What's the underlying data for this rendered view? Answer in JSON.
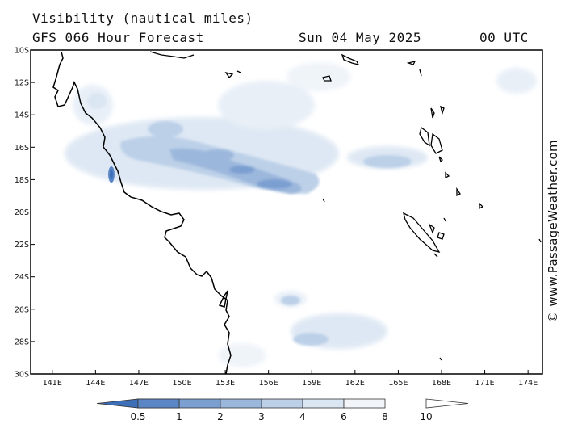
{
  "header": {
    "title": "Visibility (nautical miles)",
    "subtitle": "GFS 066 Hour Forecast",
    "date": "Sun 04 May 2025",
    "time": "00 UTC"
  },
  "credit": "© www.PassageWeather.com",
  "map": {
    "lat_range": [
      -30,
      -10
    ],
    "lon_range": [
      139.5,
      175
    ],
    "lat_labels": [
      "10S",
      "12S",
      "14S",
      "16S",
      "18S",
      "20S",
      "22S",
      "24S",
      "26S",
      "28S",
      "30S"
    ],
    "lat_values": [
      -10,
      -12,
      -14,
      -16,
      -18,
      -20,
      -22,
      -24,
      -26,
      -28,
      -30
    ],
    "lon_labels": [
      "141E",
      "144E",
      "147E",
      "150E",
      "153E",
      "156E",
      "159E",
      "162E",
      "165E",
      "168E",
      "171E",
      "174E"
    ],
    "lon_values": [
      141,
      144,
      147,
      150,
      153,
      156,
      159,
      162,
      165,
      168,
      171,
      174
    ]
  },
  "legend": {
    "levels": [
      "0.5",
      "1",
      "2",
      "3",
      "4",
      "6",
      "8",
      "10"
    ],
    "colors": [
      "#3d6eb8",
      "#5b86c6",
      "#7b9fd1",
      "#9bb7dc",
      "#bcd0e8",
      "#dbe6f3",
      "#f2f6fb"
    ]
  },
  "colors": {
    "land": "#ffffff",
    "coast": "#000000",
    "frame": "#000000"
  }
}
